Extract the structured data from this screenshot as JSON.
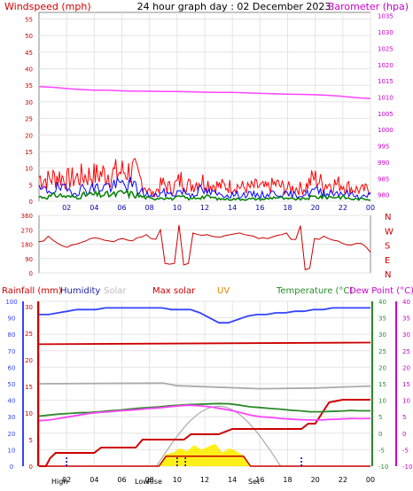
{
  "chart_data": [
    {
      "type": "line",
      "title": "24 hour graph day : 02 December 2023",
      "left_axis_label": "Windspeed (mph)",
      "right_axis_label": "Barometer (hpa)",
      "x_ticks": [
        "02",
        "04",
        "06",
        "08",
        "10",
        "12",
        "14",
        "16",
        "18",
        "20",
        "22",
        "00"
      ],
      "left_ticks": [
        0,
        5,
        10,
        15,
        20,
        25,
        30,
        35,
        40,
        45,
        50,
        55
      ],
      "right_ticks": [
        980,
        985,
        990,
        995,
        1000,
        1005,
        1010,
        1015,
        1020,
        1025,
        1030,
        1035
      ],
      "ylim_left": [
        0,
        57
      ],
      "ylim_right": [
        978,
        1036
      ],
      "colors": {
        "gust": "#ff0000",
        "wind": "#0000ff",
        "avg": "#008000",
        "barometer": "#ff44ff"
      },
      "series": {
        "barometer": [
          1013.2,
          1013.0,
          1012.6,
          1012.3,
          1012.1,
          1012.1,
          1011.9,
          1011.8,
          1011.8,
          1011.7,
          1011.7,
          1011.6,
          1011.5,
          1011.4,
          1011.4,
          1011.3,
          1011.1,
          1011.0,
          1010.9,
          1010.8,
          1010.7,
          1010.5,
          1010.2,
          1009.8,
          1009.5
        ],
        "gust_envelope": [
          11,
          10,
          12,
          10,
          11,
          12,
          12,
          13,
          13,
          14,
          14,
          8,
          3,
          8,
          6,
          10,
          7,
          10,
          8,
          7,
          7,
          7,
          6,
          7,
          6,
          8,
          6,
          6,
          6,
          11,
          8,
          8,
          8,
          6,
          5,
          6
        ],
        "wind_envelope": [
          5,
          5,
          6,
          5,
          5,
          6,
          6,
          7,
          7,
          8,
          7,
          4,
          2,
          4,
          3,
          5,
          3,
          5,
          4,
          3,
          3,
          3,
          3,
          3,
          3,
          4,
          3,
          3,
          3,
          5,
          4,
          4,
          4,
          3,
          2,
          3
        ],
        "avg_envelope": [
          2,
          2,
          3,
          2,
          2,
          3,
          3,
          3,
          3,
          4,
          3,
          2,
          1,
          2,
          1,
          2,
          1,
          2,
          2,
          1,
          1,
          1,
          1,
          1,
          1,
          2,
          1,
          1,
          1,
          2,
          2,
          2,
          2,
          1,
          1,
          1
        ]
      }
    },
    {
      "type": "line",
      "series_name": "Wind direction",
      "right_labels": [
        "N",
        "W",
        "S",
        "E",
        "N"
      ],
      "left_ticks": [
        0,
        90,
        180,
        270,
        360
      ],
      "ylim": [
        0,
        360
      ],
      "color": "#cc0000",
      "direction": [
        195,
        200,
        230,
        205,
        185,
        170,
        160,
        175,
        180,
        190,
        200,
        215,
        220,
        215,
        205,
        200,
        195,
        210,
        215,
        205,
        200,
        220,
        225,
        240,
        215,
        210,
        270,
        60,
        55,
        60,
        300,
        50,
        60,
        250,
        240,
        235,
        240,
        230,
        225,
        225,
        235,
        240,
        245,
        250,
        240,
        235,
        230,
        215,
        220,
        215,
        225,
        235,
        240,
        250,
        210,
        210,
        295,
        20,
        30,
        215,
        210,
        230,
        215,
        205,
        200,
        185,
        175,
        175,
        185,
        185,
        165,
        130
      ]
    },
    {
      "type": "line",
      "labels": {
        "rainfall": "Rainfall (mm)",
        "humidity": "Humidity",
        "solar": "Solar",
        "max_solar": "Max solar",
        "uv": "UV",
        "temperature": "Temperature (°C)",
        "dew_point": "Dew Point (°C)"
      },
      "rain_ticks": [
        0,
        5,
        10,
        15,
        20,
        25,
        30
      ],
      "humidity_ticks": [
        0,
        10,
        20,
        30,
        40,
        50,
        60,
        70,
        80,
        90,
        100
      ],
      "temp_ticks": [
        -10,
        -5,
        0,
        5,
        10,
        15,
        20,
        25,
        30,
        35,
        40
      ],
      "x_ticks": [
        "02",
        "04",
        "06",
        "08",
        "10",
        "12",
        "14",
        "16",
        "18",
        "20",
        "22",
        "00"
      ],
      "sun_labels": {
        "high_tide": "High",
        "low_tide": "Low",
        "sunrise": "Rise",
        "sunset": "Set"
      },
      "colors": {
        "rain": "#cc0000",
        "humidity": "#3344ff",
        "solar": "#aaaaaa",
        "max_solar": "#aaaaaa",
        "uv": "#ffee00",
        "temperature": "#2a8a2a",
        "dew_point": "#ff44ff",
        "rain_rate": "#cc0000"
      },
      "rain_cum": [
        [
          0,
          0
        ],
        [
          0.5,
          0
        ],
        [
          0.8,
          1.5
        ],
        [
          1.2,
          2.5
        ],
        [
          4.0,
          2.5
        ],
        [
          4.5,
          3.5
        ],
        [
          7.0,
          3.5
        ],
        [
          7.5,
          5.0
        ],
        [
          10.5,
          5.0
        ],
        [
          11.0,
          6.0
        ],
        [
          13.0,
          6.0
        ],
        [
          14.0,
          7.0
        ],
        [
          18.0,
          7.0
        ],
        [
          19.0,
          7.0
        ],
        [
          19.5,
          8.0
        ],
        [
          20.0,
          8.0
        ],
        [
          21.0,
          12.0
        ],
        [
          22.0,
          12.5
        ],
        [
          24.0,
          12.5
        ]
      ],
      "humidity": [
        92,
        92,
        93,
        94,
        95,
        95,
        95,
        96,
        96,
        96,
        96,
        96,
        96,
        96,
        95,
        95,
        95,
        93,
        90,
        87,
        87,
        89,
        91,
        92,
        92,
        93,
        93,
        94,
        94,
        95,
        95,
        96,
        96,
        96,
        96,
        96
      ],
      "temperature": [
        5.2,
        5.5,
        5.8,
        6.0,
        6.2,
        6.3,
        6.5,
        6.8,
        7.0,
        7.3,
        7.6,
        7.8,
        8.0,
        8.3,
        8.5,
        8.7,
        8.8,
        8.9,
        9.0,
        8.9,
        8.5,
        8.0,
        7.8,
        7.5,
        7.3,
        7.0,
        6.8,
        6.5,
        6.5,
        6.6,
        6.7,
        6.9,
        6.8,
        6.8
      ],
      "dew_point": [
        3.8,
        4.0,
        4.5,
        5.0,
        5.5,
        6.0,
        6.3,
        6.5,
        6.8,
        7.0,
        7.2,
        7.5,
        7.7,
        8.0,
        8.3,
        8.5,
        8.3,
        8.0,
        7.5,
        7.0,
        6.3,
        5.5,
        5.0,
        4.8,
        4.5,
        4.3,
        4.1,
        4.0,
        4.0,
        4.2,
        4.3,
        4.5,
        4.4,
        4.5
      ],
      "max_solar_peak_w": 40,
      "solar_w": [
        0,
        0,
        0,
        0,
        0,
        0,
        0,
        0,
        0,
        0,
        0,
        0,
        0,
        0,
        0,
        0,
        0,
        0,
        8,
        9,
        12,
        10,
        14,
        11,
        13,
        15,
        9,
        12,
        10,
        7,
        0,
        0,
        0,
        0,
        0,
        0,
        0,
        0,
        0,
        0,
        0,
        0,
        0,
        0,
        0,
        0,
        0,
        0
      ],
      "uv_index": [
        0,
        0,
        0,
        0,
        0,
        0,
        0,
        0,
        0,
        0,
        0,
        0,
        0,
        0,
        0,
        0,
        0,
        0,
        1,
        1,
        1,
        1,
        1,
        1,
        1,
        1,
        1,
        1,
        1,
        1,
        0,
        0,
        0,
        0,
        0,
        0,
        0,
        0,
        0,
        0,
        0,
        0,
        0,
        0,
        0,
        0,
        0,
        0
      ]
    }
  ]
}
